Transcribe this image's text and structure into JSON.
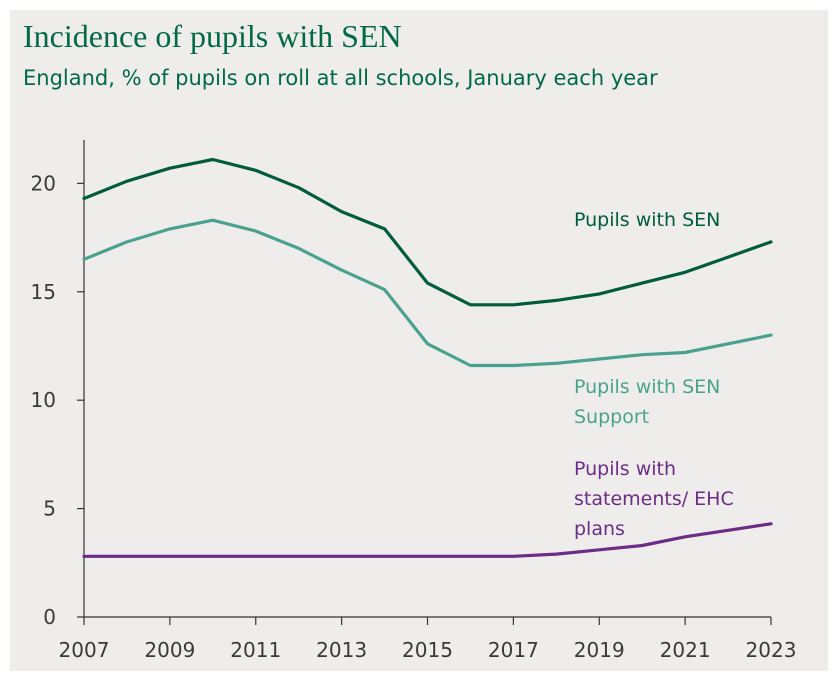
{
  "chart_data": {
    "type": "line",
    "title": "Incidence of pupils with SEN",
    "subtitle": "England, % of pupils on roll at all schools, January each year",
    "xlabel": "",
    "ylabel": "",
    "x": [
      2007,
      2008,
      2009,
      2010,
      2011,
      2012,
      2013,
      2014,
      2015,
      2016,
      2017,
      2018,
      2019,
      2020,
      2021,
      2022,
      2023
    ],
    "x_ticks": [
      "2007",
      "2009",
      "2011",
      "2013",
      "2015",
      "2017",
      "2019",
      "2021",
      "2023"
    ],
    "y_ticks": [
      "0",
      "5",
      "10",
      "15",
      "20"
    ],
    "ylim": [
      0,
      22
    ],
    "xlim": [
      2007,
      2023
    ],
    "grid": false,
    "legend": "direct labels on lines",
    "series": [
      {
        "name": "Pupils with SEN",
        "label_lines": [
          "Pupils with SEN"
        ],
        "color": "#005c3c",
        "values": [
          19.3,
          20.1,
          20.7,
          21.1,
          20.6,
          19.8,
          18.7,
          17.9,
          15.4,
          14.4,
          14.4,
          14.6,
          14.9,
          15.4,
          15.9,
          16.6,
          17.3
        ]
      },
      {
        "name": "Pupils with SEN Support",
        "label_lines": [
          "Pupils with SEN",
          "Support"
        ],
        "color": "#4aa28e",
        "values": [
          16.5,
          17.3,
          17.9,
          18.3,
          17.8,
          17.0,
          16.0,
          15.1,
          12.6,
          11.6,
          11.6,
          11.7,
          11.9,
          12.1,
          12.2,
          12.6,
          13.0
        ]
      },
      {
        "name": "Pupils with statements/ EHC plans",
        "label_lines": [
          "Pupils with",
          "statements/ EHC",
          "plans"
        ],
        "color": "#6b2d85",
        "values": [
          2.8,
          2.8,
          2.8,
          2.8,
          2.8,
          2.8,
          2.8,
          2.8,
          2.8,
          2.8,
          2.8,
          2.9,
          3.1,
          3.3,
          3.7,
          4.0,
          4.3
        ]
      }
    ]
  }
}
